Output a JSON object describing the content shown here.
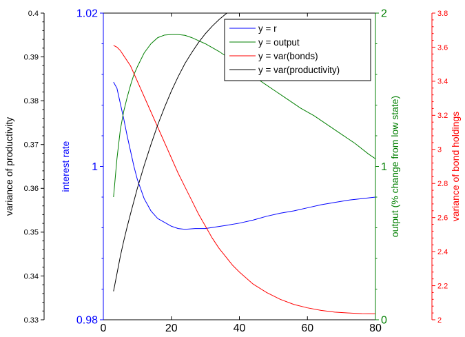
{
  "chart_data": {
    "type": "line",
    "x": {
      "ticks": [
        0,
        20,
        40,
        60,
        80
      ],
      "range": [
        0,
        80
      ]
    },
    "axes": [
      {
        "id": "productivity_var",
        "label": "variance of productivity",
        "color": "#000000",
        "range": [
          0.33,
          0.4
        ],
        "ticks": [
          "0.33",
          "0.34",
          "0.35",
          "0.36",
          "0.37",
          "0.38",
          "0.39",
          "0.4"
        ]
      },
      {
        "id": "interest",
        "label": "interest rate",
        "color": "#0000ff",
        "range": [
          0.98,
          1.02
        ],
        "ticks": [
          "0.98",
          "1",
          "1.02"
        ]
      },
      {
        "id": "output",
        "label": "output (% change from low state)",
        "color": "#007f00",
        "range": [
          0,
          2
        ],
        "ticks": [
          "0",
          "1",
          "2"
        ]
      },
      {
        "id": "bonds_var",
        "label": "variance of bond holdings",
        "color": "#ff0000",
        "range": [
          2,
          3.8
        ],
        "ticks": [
          "2",
          "2.2",
          "2.4",
          "2.6",
          "2.8",
          "3",
          "3.2",
          "3.4",
          "3.6",
          "3.8"
        ]
      }
    ],
    "series": [
      {
        "name": "y = r",
        "axis": "interest",
        "color": "#0000ff",
        "points": [
          [
            3,
            1.011
          ],
          [
            4,
            1.0102
          ],
          [
            5,
            1.0082
          ],
          [
            6,
            1.0062
          ],
          [
            7,
            1.004
          ],
          [
            8,
            1.002
          ],
          [
            9,
            1.0
          ],
          [
            10,
            0.9983
          ],
          [
            12,
            0.9958
          ],
          [
            14,
            0.9942
          ],
          [
            16,
            0.9932
          ],
          [
            18,
            0.9927
          ],
          [
            20,
            0.9922
          ],
          [
            22,
            0.9919
          ],
          [
            24,
            0.9918
          ],
          [
            27,
            0.9919
          ],
          [
            30,
            0.9919
          ],
          [
            33,
            0.9921
          ],
          [
            36,
            0.9923
          ],
          [
            40,
            0.9926
          ],
          [
            44,
            0.993
          ],
          [
            48,
            0.9935
          ],
          [
            52,
            0.9939
          ],
          [
            56,
            0.9942
          ],
          [
            60,
            0.9946
          ],
          [
            64,
            0.995
          ],
          [
            68,
            0.9953
          ],
          [
            72,
            0.9956
          ],
          [
            76,
            0.9958
          ],
          [
            80,
            0.996
          ]
        ]
      },
      {
        "name": "y = output",
        "axis": "output",
        "color": "#007f00",
        "points": [
          [
            3,
            0.8
          ],
          [
            4,
            1.05
          ],
          [
            5,
            1.24
          ],
          [
            6,
            1.36
          ],
          [
            7,
            1.45
          ],
          [
            8,
            1.53
          ],
          [
            9,
            1.6
          ],
          [
            10,
            1.65
          ],
          [
            12,
            1.74
          ],
          [
            14,
            1.8
          ],
          [
            16,
            1.84
          ],
          [
            18,
            1.857
          ],
          [
            20,
            1.86
          ],
          [
            22,
            1.86
          ],
          [
            24,
            1.855
          ],
          [
            26,
            1.84
          ],
          [
            28,
            1.82
          ],
          [
            30,
            1.8
          ],
          [
            34,
            1.75
          ],
          [
            38,
            1.69
          ],
          [
            42,
            1.63
          ],
          [
            46,
            1.56
          ],
          [
            50,
            1.5
          ],
          [
            54,
            1.44
          ],
          [
            58,
            1.38
          ],
          [
            62,
            1.33
          ],
          [
            66,
            1.27
          ],
          [
            70,
            1.21
          ],
          [
            74,
            1.15
          ],
          [
            78,
            1.08
          ],
          [
            80,
            1.05
          ]
        ]
      },
      {
        "name": "y = var(bonds)",
        "axis": "bonds_var",
        "color": "#ff0000",
        "points": [
          [
            3,
            3.61
          ],
          [
            4,
            3.6
          ],
          [
            5,
            3.58
          ],
          [
            6,
            3.55
          ],
          [
            8,
            3.49
          ],
          [
            10,
            3.4
          ],
          [
            12,
            3.31
          ],
          [
            14,
            3.22
          ],
          [
            16,
            3.13
          ],
          [
            18,
            3.04
          ],
          [
            20,
            2.95
          ],
          [
            22,
            2.86
          ],
          [
            24,
            2.78
          ],
          [
            26,
            2.7
          ],
          [
            28,
            2.62
          ],
          [
            30,
            2.55
          ],
          [
            32,
            2.48
          ],
          [
            34,
            2.42
          ],
          [
            36,
            2.37
          ],
          [
            38,
            2.32
          ],
          [
            40,
            2.28
          ],
          [
            44,
            2.21
          ],
          [
            48,
            2.16
          ],
          [
            52,
            2.12
          ],
          [
            56,
            2.09
          ],
          [
            60,
            2.07
          ],
          [
            64,
            2.055
          ],
          [
            68,
            2.045
          ],
          [
            72,
            2.04
          ],
          [
            76,
            2.036
          ],
          [
            80,
            2.035
          ]
        ]
      },
      {
        "name": "y = var(productivity)",
        "axis": "productivity_var",
        "color": "#000000",
        "points": [
          [
            3,
            0.3365
          ],
          [
            4,
            0.3405
          ],
          [
            5,
            0.3445
          ],
          [
            6,
            0.348
          ],
          [
            7,
            0.3512
          ],
          [
            8,
            0.3542
          ],
          [
            10,
            0.36
          ],
          [
            12,
            0.3652
          ],
          [
            14,
            0.37
          ],
          [
            16,
            0.3745
          ],
          [
            18,
            0.3785
          ],
          [
            20,
            0.3822
          ],
          [
            22,
            0.3855
          ],
          [
            24,
            0.3885
          ],
          [
            26,
            0.391
          ],
          [
            28,
            0.3933
          ],
          [
            30,
            0.3953
          ],
          [
            32,
            0.397
          ],
          [
            34,
            0.3985
          ],
          [
            36,
            0.3998
          ],
          [
            38,
            0.401
          ],
          [
            40,
            0.402
          ]
        ]
      }
    ],
    "legend": {
      "position": "top-right",
      "entries": [
        "y = r",
        "y = output",
        "y = var(bonds)",
        "y = var(productivity)"
      ]
    }
  }
}
